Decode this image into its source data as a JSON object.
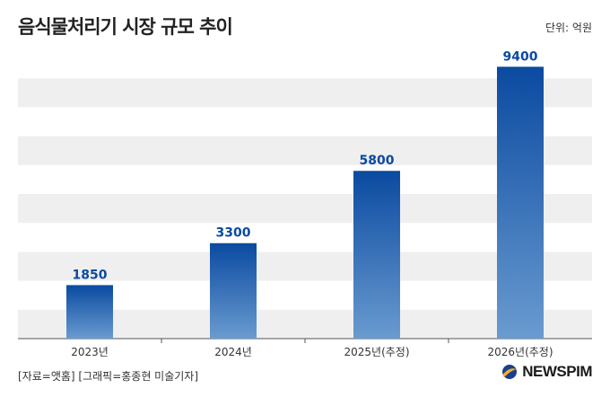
{
  "header": {
    "title": "음식물처리기 시장 규모 추이",
    "unit": "단위: 억원"
  },
  "chart_data": {
    "type": "bar",
    "categories": [
      "2023년",
      "2024년",
      "2025년(추정)",
      "2026년(추정)"
    ],
    "values": [
      1850,
      3300,
      5800,
      9400
    ],
    "ylim": [
      0,
      10000
    ],
    "grid": "alternating horizontal bands",
    "legend": "none",
    "title": "",
    "xlabel": "",
    "ylabel": ""
  },
  "footer": {
    "source": "[자료=앳홈] [그래픽=홍종현 미술기자]",
    "logo": "NEWSPIM"
  },
  "colors": {
    "bar_top": "#0a4aa0",
    "bar_bottom": "#6a9bd0",
    "band": "#efefef",
    "label": "#0a4aa0"
  }
}
